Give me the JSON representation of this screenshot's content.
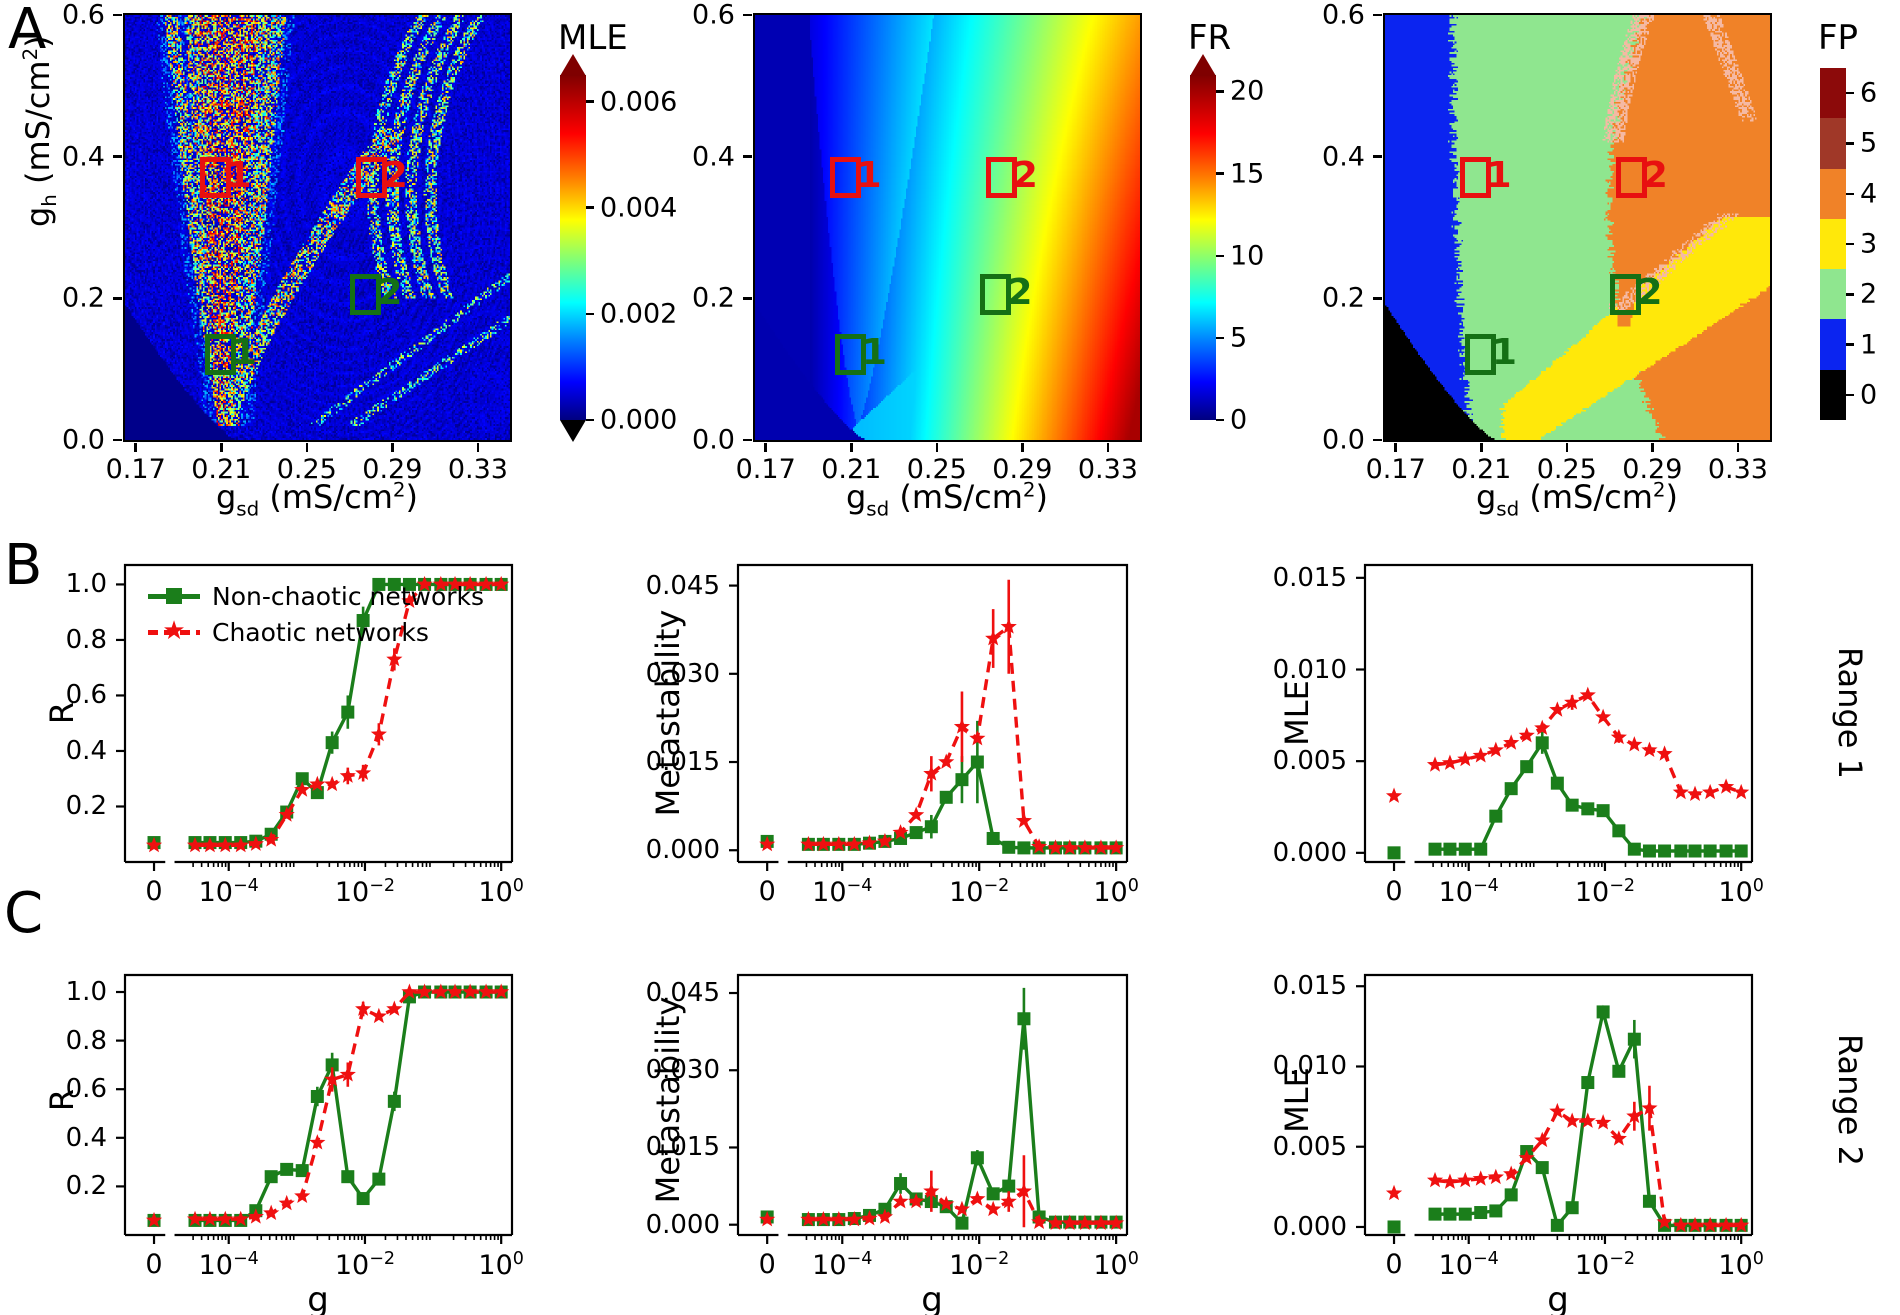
{
  "figure": {
    "panels": {
      "a": "A",
      "b": "B",
      "c": "C"
    }
  },
  "colors": {
    "green": "#1b7e1b",
    "red": "#ef1010",
    "axis": "#000000"
  },
  "heatmaps": {
    "xlabel": {
      "sym": "g",
      "sub": "sd",
      "mid": " (mS/cm",
      "sup": "2",
      "end": ")"
    },
    "ylabel": {
      "sym": "g",
      "sub": "h",
      "mid": " (mS/cm",
      "sup": "2",
      "end": ")"
    },
    "xrange": [
      0.165,
      0.345
    ],
    "yrange": [
      0.0,
      0.6
    ],
    "xtick_vals": [
      0.17,
      0.21,
      0.25,
      0.29,
      0.33
    ],
    "xtick_labels": [
      "0.17",
      "0.21",
      "0.25",
      "0.29",
      "0.33"
    ],
    "ytick_vals": [
      0.6,
      0.4,
      0.2,
      0.0
    ],
    "ytick_labels": [
      "0.6",
      "0.4",
      "0.2",
      "0.0"
    ],
    "panels": [
      {
        "id": "mle",
        "title": "MLE",
        "colorbar": {
          "type": "jet",
          "max": 0.0065,
          "tick_vals": [
            0.006,
            0.004,
            0.002,
            0.0
          ],
          "tick_labels": [
            "0.006",
            "0.004",
            "0.002",
            "0.000"
          ],
          "arrow_top": true,
          "arrow_bottom": true
        }
      },
      {
        "id": "fr",
        "title": "FR",
        "colorbar": {
          "type": "jet",
          "max": 21,
          "tick_vals": [
            20,
            15,
            10,
            5,
            0
          ],
          "tick_labels": [
            "20",
            "15",
            "10",
            "5",
            "0"
          ],
          "arrow_top": true,
          "arrow_bottom": false
        }
      },
      {
        "id": "fp",
        "title": "FP",
        "colorbar": {
          "type": "discrete",
          "segment_colors": [
            "#8c0a0a",
            "#a03828",
            "#f08228",
            "#ffe80a",
            "#8fe68f",
            "#0b24f0",
            "#000000"
          ],
          "tick_labels": [
            "6",
            "5",
            "4",
            "3",
            "2",
            "1",
            "0"
          ]
        }
      }
    ],
    "boxes": [
      {
        "label": "1",
        "color": "#e81010",
        "gsd": 0.205,
        "gh": 0.375
      },
      {
        "label": "2",
        "color": "#e81010",
        "gsd": 0.278,
        "gh": 0.375
      },
      {
        "label": "1",
        "color": "#157015",
        "gsd": 0.2075,
        "gh": 0.125
      },
      {
        "label": "2",
        "color": "#157015",
        "gsd": 0.2755,
        "gh": 0.21
      }
    ]
  },
  "legend": {
    "items": [
      {
        "label": "Non-chaotic networks",
        "series": "nonchaotic"
      },
      {
        "label": "Chaotic networks",
        "series": "chaotic"
      }
    ]
  },
  "rows": {
    "b": {
      "range_label": "Range 1"
    },
    "c": {
      "range_label": "Range 2"
    }
  },
  "xaxis": {
    "xlabel": "g",
    "zero_label": "0",
    "base": "10",
    "log_ticks": [
      {
        "v": 0.0001,
        "exp": "−4"
      },
      {
        "v": 0.01,
        "exp": "−2"
      },
      {
        "v": 1.0,
        "exp": "0"
      }
    ],
    "x_log": [
      3.2e-05,
      5.3e-05,
      8.9e-05,
      0.00015,
      0.00025,
      0.00042,
      0.00071,
      0.0012,
      0.002,
      0.0033,
      0.0056,
      0.0094,
      0.016,
      0.027,
      0.045,
      0.075,
      0.13,
      0.21,
      0.35,
      0.6,
      1.0
    ]
  },
  "chart_data": [
    {
      "type": "line",
      "panel": "B",
      "slot": 0,
      "ylabel": "R",
      "ylim": [
        0,
        1.07
      ],
      "ytick_vals": [
        0.2,
        0.4,
        0.6,
        0.8,
        1.0
      ],
      "ytick_labels": [
        "0.2",
        "0.4",
        "0.6",
        "0.8",
        "1.0"
      ],
      "has_legend": true,
      "series": [
        {
          "name": "Non-chaotic networks",
          "color": "green",
          "marker": "square",
          "line": "solid",
          "y0": 0.07,
          "y": [
            0.07,
            0.07,
            0.07,
            0.07,
            0.075,
            0.1,
            0.18,
            0.3,
            0.25,
            0.43,
            0.54,
            0.87,
            1.0,
            1.0,
            1.0,
            1.0,
            1.0,
            1.0,
            1.0,
            1.0,
            1.0
          ],
          "err": [
            0,
            0,
            0,
            0,
            0,
            0,
            0,
            0,
            0,
            0.04,
            0.06,
            0.05,
            0,
            0,
            0,
            0,
            0,
            0,
            0,
            0,
            0
          ]
        },
        {
          "name": "Chaotic networks",
          "color": "red",
          "marker": "star",
          "line": "dashed",
          "y0": 0.06,
          "y": [
            0.06,
            0.06,
            0.06,
            0.06,
            0.065,
            0.08,
            0.17,
            0.26,
            0.28,
            0.28,
            0.31,
            0.32,
            0.46,
            0.73,
            0.94,
            1.0,
            1.0,
            1.0,
            1.0,
            1.0,
            1.0
          ],
          "err": [
            0,
            0,
            0,
            0,
            0,
            0,
            0,
            0,
            0,
            0,
            0.03,
            0.03,
            0.04,
            0.04,
            0,
            0,
            0,
            0,
            0,
            0,
            0
          ]
        }
      ]
    },
    {
      "type": "line",
      "panel": "B",
      "slot": 1,
      "ylabel": "Metastability",
      "ylim": [
        -0.002,
        0.0485
      ],
      "ytick_vals": [
        0.0,
        0.015,
        0.03,
        0.045
      ],
      "ytick_labels": [
        "0.000",
        "0.015",
        "0.030",
        "0.045"
      ],
      "series": [
        {
          "name": "Non-chaotic networks",
          "color": "green",
          "marker": "square",
          "line": "solid",
          "y0": 0.0015,
          "y": [
            0.001,
            0.001,
            0.001,
            0.001,
            0.0012,
            0.0015,
            0.002,
            0.003,
            0.004,
            0.009,
            0.012,
            0.015,
            0.002,
            0.0005,
            0.0004,
            0.0004,
            0.0004,
            0.0004,
            0.0004,
            0.0004,
            0.0004
          ],
          "err": [
            0,
            0,
            0,
            0,
            0,
            0,
            0,
            0,
            0.002,
            0,
            0.004,
            0.007,
            0,
            0,
            0,
            0,
            0,
            0,
            0,
            0,
            0
          ]
        },
        {
          "name": "Chaotic networks",
          "color": "red",
          "marker": "star",
          "line": "dashed",
          "y0": 0.001,
          "y": [
            0.001,
            0.001,
            0.001,
            0.001,
            0.0012,
            0.0015,
            0.003,
            0.006,
            0.013,
            0.015,
            0.021,
            0.019,
            0.036,
            0.038,
            0.005,
            0.0006,
            0.0004,
            0.0004,
            0.0004,
            0.0004,
            0.0004
          ],
          "err": [
            0,
            0,
            0,
            0,
            0,
            0,
            0,
            0,
            0.003,
            0,
            0.006,
            0,
            0.005,
            0.008,
            0,
            0,
            0,
            0,
            0,
            0,
            0
          ]
        }
      ]
    },
    {
      "type": "line",
      "panel": "B",
      "slot": 2,
      "ylabel": "MLE",
      "ylim": [
        -0.0005,
        0.0157
      ],
      "ytick_vals": [
        0.0,
        0.005,
        0.01,
        0.015
      ],
      "ytick_labels": [
        "0.000",
        "0.005",
        "0.010",
        "0.015"
      ],
      "series": [
        {
          "name": "Non-chaotic networks",
          "color": "green",
          "marker": "square",
          "line": "solid",
          "y0": 0.0,
          "y": [
            0.0002,
            0.0002,
            0.0002,
            0.0002,
            0.002,
            0.0035,
            0.0047,
            0.006,
            0.0038,
            0.0026,
            0.0024,
            0.0023,
            0.0012,
            0.0002,
            0.0001,
            0.0001,
            0.0001,
            0.0001,
            0.0001,
            0.0001,
            0.0001
          ],
          "err": [
            0,
            0,
            0,
            0,
            0,
            0,
            0,
            0.0006,
            0,
            0,
            0,
            0,
            0,
            0,
            0,
            0,
            0,
            0,
            0,
            0,
            0
          ]
        },
        {
          "name": "Chaotic networks",
          "color": "red",
          "marker": "star",
          "line": "dashed",
          "y0": 0.0031,
          "y": [
            0.0048,
            0.0049,
            0.0051,
            0.0053,
            0.0056,
            0.006,
            0.0064,
            0.0068,
            0.0078,
            0.0082,
            0.0086,
            0.0074,
            0.0063,
            0.0059,
            0.0056,
            0.0054,
            0.0033,
            0.0032,
            0.0033,
            0.0036,
            0.0033
          ],
          "err": [
            0,
            0,
            0,
            0,
            0,
            0,
            0,
            0,
            0,
            0.0004,
            0,
            0,
            0.0003,
            0,
            0,
            0,
            0,
            0,
            0,
            0,
            0
          ]
        }
      ]
    },
    {
      "type": "line",
      "panel": "C",
      "slot": 0,
      "ylabel": "R",
      "ylim": [
        0,
        1.07
      ],
      "ytick_vals": [
        0.2,
        0.4,
        0.6,
        0.8,
        1.0
      ],
      "ytick_labels": [
        "0.2",
        "0.4",
        "0.6",
        "0.8",
        "1.0"
      ],
      "series": [
        {
          "name": "Non-chaotic networks",
          "color": "green",
          "marker": "square",
          "line": "solid",
          "y0": 0.06,
          "y": [
            0.06,
            0.06,
            0.06,
            0.06,
            0.1,
            0.24,
            0.27,
            0.265,
            0.57,
            0.7,
            0.24,
            0.15,
            0.23,
            0.55,
            0.98,
            1.0,
            1.0,
            1.0,
            1.0,
            1.0,
            1.0
          ],
          "err": [
            0,
            0,
            0,
            0,
            0,
            0,
            0,
            0,
            0.04,
            0.05,
            0,
            0,
            0,
            0.04,
            0,
            0,
            0,
            0,
            0,
            0,
            0
          ]
        },
        {
          "name": "Chaotic networks",
          "color": "red",
          "marker": "star",
          "line": "dashed",
          "y0": 0.06,
          "y": [
            0.065,
            0.065,
            0.065,
            0.065,
            0.075,
            0.09,
            0.13,
            0.16,
            0.38,
            0.64,
            0.66,
            0.93,
            0.9,
            0.93,
            1.0,
            1.0,
            1.0,
            1.0,
            1.0,
            1.0,
            1.0
          ],
          "err": [
            0,
            0,
            0,
            0,
            0,
            0,
            0,
            0,
            0,
            0.05,
            0.05,
            0.03,
            0,
            0,
            0,
            0,
            0,
            0,
            0,
            0,
            0
          ]
        }
      ]
    },
    {
      "type": "line",
      "panel": "C",
      "slot": 1,
      "ylabel": "Metastability",
      "ylim": [
        -0.002,
        0.0485
      ],
      "ytick_vals": [
        0.0,
        0.015,
        0.03,
        0.045
      ],
      "ytick_labels": [
        "0.000",
        "0.015",
        "0.030",
        "0.045"
      ],
      "series": [
        {
          "name": "Non-chaotic networks",
          "color": "green",
          "marker": "square",
          "line": "solid",
          "y0": 0.0015,
          "y": [
            0.001,
            0.001,
            0.001,
            0.0012,
            0.0018,
            0.003,
            0.008,
            0.005,
            0.0045,
            0.0035,
            0.0003,
            0.013,
            0.006,
            0.0075,
            0.04,
            0.0015,
            0.0005,
            0.0005,
            0.0005,
            0.0005,
            0.0005
          ],
          "err": [
            0,
            0,
            0,
            0,
            0,
            0,
            0.002,
            0,
            0,
            0,
            0,
            0.0015,
            0,
            0,
            0.006,
            0,
            0,
            0,
            0,
            0,
            0
          ]
        },
        {
          "name": "Chaotic networks",
          "color": "red",
          "marker": "star",
          "line": "dashed",
          "y0": 0.001,
          "y": [
            0.001,
            0.001,
            0.001,
            0.001,
            0.0012,
            0.0015,
            0.0045,
            0.0045,
            0.0065,
            0.004,
            0.003,
            0.005,
            0.003,
            0.0045,
            0.0065,
            0.0005,
            0.0003,
            0.0003,
            0.0003,
            0.0003,
            0.0003
          ],
          "err": [
            0,
            0,
            0,
            0,
            0,
            0,
            0,
            0,
            0.004,
            0,
            0,
            0,
            0,
            0.002,
            0.007,
            0,
            0,
            0,
            0,
            0,
            0
          ]
        }
      ]
    },
    {
      "type": "line",
      "panel": "C",
      "slot": 2,
      "ylabel": "MLE",
      "ylim": [
        -0.0005,
        0.0157
      ],
      "ytick_vals": [
        0.0,
        0.005,
        0.01,
        0.015
      ],
      "ytick_labels": [
        "0.000",
        "0.005",
        "0.010",
        "0.015"
      ],
      "series": [
        {
          "name": "Non-chaotic networks",
          "color": "green",
          "marker": "square",
          "line": "solid",
          "y0": 0.0,
          "y": [
            0.0008,
            0.0008,
            0.0008,
            0.0009,
            0.001,
            0.002,
            0.0047,
            0.0037,
            0.0001,
            0.0012,
            0.009,
            0.0134,
            0.0097,
            0.0117,
            0.0016,
            0.0001,
            0.0001,
            0.0001,
            0.0001,
            0.0001,
            0.0001
          ],
          "err": [
            0,
            0,
            0,
            0,
            0,
            0,
            0,
            0,
            0,
            0,
            0,
            0,
            0,
            0.0012,
            0,
            0,
            0,
            0,
            0,
            0,
            0
          ]
        },
        {
          "name": "Chaotic networks",
          "color": "red",
          "marker": "star",
          "line": "dashed",
          "y0": 0.0021,
          "y": [
            0.0029,
            0.0028,
            0.0029,
            0.003,
            0.0031,
            0.0033,
            0.0043,
            0.0054,
            0.0072,
            0.0066,
            0.0066,
            0.0065,
            0.0055,
            0.0069,
            0.0074,
            0.0003,
            0.0001,
            0.0001,
            0.0001,
            0.0001,
            0.0001
          ],
          "err": [
            0,
            0,
            0,
            0,
            0,
            0,
            0,
            0,
            0,
            0,
            0,
            0,
            0,
            0.0009,
            0.0014,
            0,
            0,
            0,
            0,
            0,
            0
          ]
        }
      ]
    }
  ]
}
